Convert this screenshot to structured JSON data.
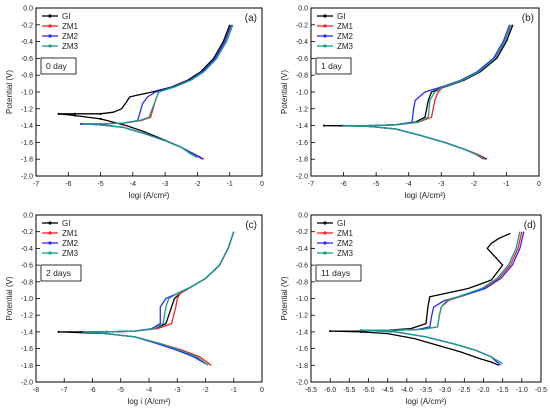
{
  "figure": {
    "series_colors": {
      "GI": "#000000",
      "ZM1": "#ff2020",
      "ZM2": "#2a2aff",
      "ZM3": "#14a08a"
    }
  },
  "chart_data": [
    {
      "type": "line",
      "panel_label": "(a)",
      "annotation": "0 day",
      "xlabel": "logi (A/cm²)",
      "ylabel": "Potential (V)",
      "xlim": [
        -7,
        0
      ],
      "ylim": [
        -2.0,
        0.0
      ],
      "xticks": [
        -7,
        -6,
        -5,
        -4,
        -3,
        -2,
        -1,
        0
      ],
      "yticks": [
        -2.0,
        -1.8,
        -1.6,
        -1.4,
        -1.2,
        -1.0,
        -0.8,
        -0.6,
        -0.4,
        -0.2,
        0.0
      ],
      "legend": "top-left",
      "series": [
        {
          "name": "GI",
          "x": [
            -1.0,
            -1.2,
            -1.5,
            -1.9,
            -2.3,
            -2.8,
            -3.4,
            -3.9,
            -4.1,
            -4.2,
            -4.35,
            -4.6,
            -5.0,
            -5.8,
            -6.3,
            -5.8,
            -5.0,
            -4.2,
            -3.6,
            -3.1,
            -2.6,
            -2.2,
            -1.9
          ],
          "y": [
            -0.2,
            -0.4,
            -0.6,
            -0.76,
            -0.86,
            -0.94,
            -1.0,
            -1.04,
            -1.06,
            -1.12,
            -1.2,
            -1.24,
            -1.26,
            -1.26,
            -1.26,
            -1.28,
            -1.32,
            -1.4,
            -1.48,
            -1.56,
            -1.64,
            -1.72,
            -1.78
          ]
        },
        {
          "name": "ZM1",
          "x": [
            -0.95,
            -1.15,
            -1.45,
            -1.85,
            -2.25,
            -2.75,
            -3.2,
            -3.3,
            -3.45,
            -3.75,
            -4.3,
            -5.0,
            -5.6,
            -5.0,
            -4.3,
            -3.6,
            -3.0,
            -2.5,
            -2.1,
            -1.85
          ],
          "y": [
            -0.2,
            -0.4,
            -0.6,
            -0.76,
            -0.86,
            -0.94,
            -1.0,
            -1.1,
            -1.3,
            -1.34,
            -1.37,
            -1.38,
            -1.38,
            -1.39,
            -1.42,
            -1.5,
            -1.58,
            -1.66,
            -1.74,
            -1.8
          ]
        },
        {
          "name": "ZM2",
          "x": [
            -0.95,
            -1.15,
            -1.45,
            -1.85,
            -2.25,
            -2.75,
            -3.3,
            -3.55,
            -3.7,
            -3.85,
            -4.3,
            -5.0,
            -5.6,
            -5.0,
            -4.3,
            -3.6,
            -3.0,
            -2.5,
            -2.1,
            -1.8
          ],
          "y": [
            -0.2,
            -0.4,
            -0.6,
            -0.76,
            -0.86,
            -0.94,
            -1.0,
            -1.06,
            -1.14,
            -1.34,
            -1.37,
            -1.38,
            -1.38,
            -1.39,
            -1.42,
            -1.5,
            -1.58,
            -1.66,
            -1.74,
            -1.8
          ]
        },
        {
          "name": "ZM3",
          "x": [
            -0.9,
            -1.1,
            -1.4,
            -1.8,
            -2.2,
            -2.7,
            -3.2,
            -3.3,
            -3.5,
            -3.8,
            -4.3,
            -5.0,
            -5.5,
            -5.0,
            -4.3,
            -3.6,
            -3.0,
            -2.5,
            -2.2,
            -2.0
          ],
          "y": [
            -0.2,
            -0.4,
            -0.6,
            -0.76,
            -0.86,
            -0.94,
            -1.0,
            -1.1,
            -1.3,
            -1.34,
            -1.37,
            -1.38,
            -1.38,
            -1.39,
            -1.42,
            -1.5,
            -1.58,
            -1.66,
            -1.74,
            -1.78
          ]
        }
      ]
    },
    {
      "type": "line",
      "panel_label": "(b)",
      "annotation": "1 day",
      "xlabel": "logi (A/cm²)",
      "ylabel": "Potential (V)",
      "xlim": [
        -7,
        0
      ],
      "ylim": [
        -2.0,
        0.0
      ],
      "xticks": [
        -7,
        -6,
        -5,
        -4,
        -3,
        -2,
        -1,
        0
      ],
      "yticks": [
        -2.0,
        -1.8,
        -1.6,
        -1.4,
        -1.2,
        -1.0,
        -0.8,
        -0.6,
        -0.4,
        -0.2,
        0.0
      ],
      "legend": "top-left",
      "series": [
        {
          "name": "GI",
          "x": [
            -0.8,
            -1.0,
            -1.3,
            -1.8,
            -2.3,
            -2.9,
            -3.3,
            -3.4,
            -3.5,
            -3.8,
            -4.4,
            -5.2,
            -6.6,
            -5.2,
            -4.4,
            -3.6,
            -2.9,
            -2.3,
            -1.9,
            -1.6
          ],
          "y": [
            -0.2,
            -0.4,
            -0.6,
            -0.76,
            -0.86,
            -0.94,
            -1.0,
            -1.1,
            -1.3,
            -1.36,
            -1.39,
            -1.4,
            -1.4,
            -1.41,
            -1.44,
            -1.52,
            -1.6,
            -1.68,
            -1.74,
            -1.8
          ]
        },
        {
          "name": "ZM1",
          "x": [
            -0.85,
            -1.05,
            -1.35,
            -1.85,
            -2.35,
            -2.95,
            -3.1,
            -3.2,
            -3.3,
            -3.7,
            -4.4,
            -5.2,
            -6.0,
            -5.2,
            -4.4,
            -3.6,
            -2.9,
            -2.3,
            -1.9,
            -1.65
          ],
          "y": [
            -0.2,
            -0.4,
            -0.6,
            -0.76,
            -0.86,
            -0.94,
            -1.0,
            -1.1,
            -1.3,
            -1.36,
            -1.39,
            -1.4,
            -1.4,
            -1.41,
            -1.44,
            -1.52,
            -1.6,
            -1.68,
            -1.74,
            -1.8
          ]
        },
        {
          "name": "ZM2",
          "x": [
            -0.9,
            -1.1,
            -1.4,
            -1.9,
            -2.4,
            -3.0,
            -3.5,
            -3.8,
            -3.85,
            -3.9,
            -4.4,
            -5.2,
            -6.0,
            -5.2,
            -4.4,
            -3.6,
            -2.9,
            -2.3,
            -1.95,
            -1.7
          ],
          "y": [
            -0.2,
            -0.4,
            -0.6,
            -0.76,
            -0.86,
            -0.94,
            -1.0,
            -1.1,
            -1.2,
            -1.36,
            -1.39,
            -1.4,
            -1.4,
            -1.41,
            -1.44,
            -1.52,
            -1.6,
            -1.68,
            -1.74,
            -1.8
          ]
        },
        {
          "name": "ZM3",
          "x": [
            -0.85,
            -1.05,
            -1.35,
            -1.85,
            -2.35,
            -2.95,
            -3.2,
            -3.35,
            -3.4,
            -3.7,
            -4.4,
            -5.2,
            -6.0,
            -5.2,
            -4.4,
            -3.6,
            -2.9,
            -2.3,
            -1.95,
            -1.7
          ],
          "y": [
            -0.2,
            -0.4,
            -0.6,
            -0.76,
            -0.86,
            -0.94,
            -1.0,
            -1.1,
            -1.3,
            -1.36,
            -1.39,
            -1.4,
            -1.4,
            -1.41,
            -1.44,
            -1.52,
            -1.6,
            -1.68,
            -1.74,
            -1.8
          ]
        }
      ]
    },
    {
      "type": "line",
      "panel_label": "(c)",
      "annotation": "2 days",
      "xlabel": "log i (A/cm²)",
      "ylabel": "Potential (V)",
      "xlim": [
        -8,
        0
      ],
      "ylim": [
        -2.0,
        0.0
      ],
      "xticks": [
        -8,
        -7,
        -6,
        -5,
        -4,
        -3,
        -2,
        -1,
        0
      ],
      "yticks": [
        -2.0,
        -1.8,
        -1.6,
        -1.4,
        -1.2,
        -1.0,
        -0.8,
        -0.6,
        -0.4,
        -0.2,
        0.0
      ],
      "legend": "top-left",
      "series": [
        {
          "name": "GI",
          "x": [
            -1.0,
            -1.2,
            -1.5,
            -2.0,
            -2.5,
            -2.9,
            -3.1,
            -3.2,
            -3.4,
            -3.8,
            -4.5,
            -5.5,
            -7.2,
            -5.5,
            -4.5,
            -3.7,
            -3.0,
            -2.4,
            -2.0
          ],
          "y": [
            -0.2,
            -0.4,
            -0.6,
            -0.76,
            -0.86,
            -0.94,
            -1.0,
            -1.1,
            -1.3,
            -1.36,
            -1.39,
            -1.4,
            -1.4,
            -1.42,
            -1.46,
            -1.54,
            -1.62,
            -1.7,
            -1.78
          ]
        },
        {
          "name": "ZM1",
          "x": [
            -1.0,
            -1.2,
            -1.5,
            -2.0,
            -2.5,
            -2.9,
            -3.0,
            -3.05,
            -3.2,
            -3.7,
            -4.5,
            -5.5,
            -6.3,
            -5.5,
            -4.5,
            -3.6,
            -2.8,
            -2.2,
            -1.8
          ],
          "y": [
            -0.2,
            -0.4,
            -0.6,
            -0.76,
            -0.86,
            -0.94,
            -1.0,
            -1.1,
            -1.3,
            -1.36,
            -1.39,
            -1.4,
            -1.4,
            -1.42,
            -1.46,
            -1.54,
            -1.62,
            -1.7,
            -1.8
          ]
        },
        {
          "name": "ZM2",
          "x": [
            -1.0,
            -1.2,
            -1.5,
            -2.0,
            -2.5,
            -3.0,
            -3.4,
            -3.6,
            -3.6,
            -3.9,
            -4.5,
            -5.5,
            -6.3,
            -5.5,
            -4.5,
            -3.7,
            -3.0,
            -2.4,
            -2.0
          ],
          "y": [
            -0.2,
            -0.4,
            -0.6,
            -0.76,
            -0.86,
            -0.94,
            -1.0,
            -1.1,
            -1.3,
            -1.36,
            -1.39,
            -1.4,
            -1.4,
            -1.42,
            -1.46,
            -1.54,
            -1.62,
            -1.7,
            -1.78
          ]
        },
        {
          "name": "ZM3",
          "x": [
            -1.0,
            -1.2,
            -1.5,
            -2.0,
            -2.5,
            -3.0,
            -3.3,
            -3.4,
            -3.5,
            -3.8,
            -4.5,
            -5.5,
            -6.3,
            -5.5,
            -4.5,
            -3.6,
            -2.9,
            -2.3,
            -1.9
          ],
          "y": [
            -0.2,
            -0.4,
            -0.6,
            -0.76,
            -0.86,
            -0.94,
            -1.0,
            -1.1,
            -1.3,
            -1.36,
            -1.39,
            -1.4,
            -1.4,
            -1.42,
            -1.46,
            -1.54,
            -1.62,
            -1.7,
            -1.8
          ]
        }
      ]
    },
    {
      "type": "line",
      "panel_label": "(d)",
      "annotation": "11 days",
      "xlabel": "logi (A/cm²)",
      "ylabel": "Potential (V)",
      "xlim": [
        -6.5,
        -0.5
      ],
      "ylim": [
        -2.0,
        0.0
      ],
      "xticks": [
        -6.5,
        -6.0,
        -5.5,
        -5.0,
        -4.5,
        -4.0,
        -3.5,
        -3.0,
        -2.5,
        -2.0,
        -1.5,
        -1.0,
        -0.5
      ],
      "yticks": [
        -2.0,
        -1.8,
        -1.6,
        -1.4,
        -1.2,
        -1.0,
        -0.8,
        -0.6,
        -0.4,
        -0.2,
        0.0
      ],
      "legend": "top-left",
      "series": [
        {
          "name": "GI",
          "x": [
            -1.3,
            -1.6,
            -1.8,
            -1.9,
            -1.7,
            -1.5,
            -1.8,
            -2.4,
            -3.0,
            -3.4,
            -3.45,
            -3.5,
            -3.9,
            -4.5,
            -5.2,
            -6.0,
            -5.2,
            -4.5,
            -3.8,
            -3.2,
            -2.6,
            -2.1,
            -1.8,
            -1.6
          ],
          "y": [
            -0.22,
            -0.28,
            -0.34,
            -0.4,
            -0.5,
            -0.6,
            -0.78,
            -0.88,
            -0.94,
            -0.98,
            -1.1,
            -1.3,
            -1.36,
            -1.38,
            -1.39,
            -1.39,
            -1.4,
            -1.42,
            -1.48,
            -1.56,
            -1.64,
            -1.72,
            -1.76,
            -1.8
          ]
        },
        {
          "name": "ZM1",
          "x": [
            -1.0,
            -1.1,
            -1.3,
            -1.6,
            -2.0,
            -2.5,
            -2.9,
            -3.1,
            -3.15,
            -3.2,
            -3.6,
            -4.3,
            -5.2,
            -4.3,
            -3.5,
            -2.8,
            -2.2,
            -1.8,
            -1.6
          ],
          "y": [
            -0.2,
            -0.4,
            -0.6,
            -0.76,
            -0.88,
            -0.96,
            -1.02,
            -1.1,
            -1.2,
            -1.34,
            -1.37,
            -1.38,
            -1.38,
            -1.4,
            -1.46,
            -1.54,
            -1.62,
            -1.7,
            -1.78
          ]
        },
        {
          "name": "ZM2",
          "x": [
            -0.95,
            -1.05,
            -1.25,
            -1.55,
            -1.95,
            -2.5,
            -3.0,
            -3.3,
            -3.35,
            -3.4,
            -3.7,
            -4.3,
            -5.2,
            -4.3,
            -3.5,
            -2.8,
            -2.2,
            -1.8,
            -1.55
          ],
          "y": [
            -0.2,
            -0.4,
            -0.6,
            -0.76,
            -0.88,
            -0.96,
            -1.02,
            -1.1,
            -1.2,
            -1.34,
            -1.37,
            -1.38,
            -1.38,
            -1.4,
            -1.46,
            -1.54,
            -1.62,
            -1.7,
            -1.8
          ]
        },
        {
          "name": "ZM3",
          "x": [
            -1.05,
            -1.15,
            -1.35,
            -1.65,
            -2.05,
            -2.55,
            -2.95,
            -3.1,
            -3.15,
            -3.2,
            -3.6,
            -4.3,
            -5.2,
            -4.3,
            -3.5,
            -2.8,
            -2.2,
            -1.8,
            -1.5
          ],
          "y": [
            -0.2,
            -0.4,
            -0.6,
            -0.76,
            -0.88,
            -0.96,
            -1.02,
            -1.1,
            -1.2,
            -1.34,
            -1.37,
            -1.38,
            -1.38,
            -1.4,
            -1.46,
            -1.54,
            -1.62,
            -1.7,
            -1.78
          ]
        }
      ]
    }
  ]
}
